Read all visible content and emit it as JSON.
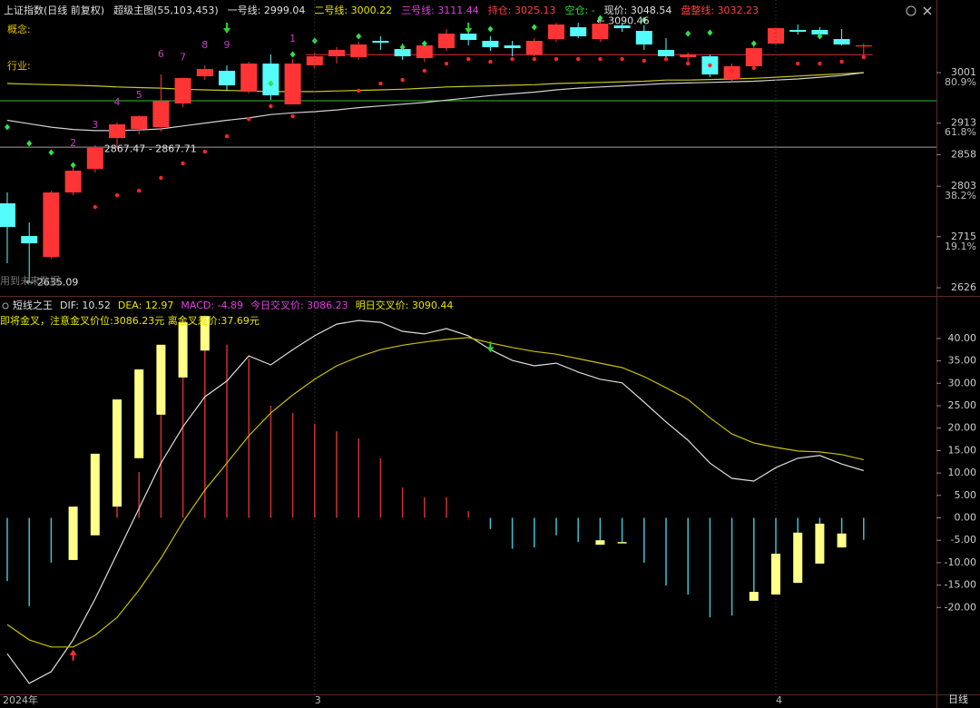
{
  "chart_data": [
    {
      "type": "candlestick",
      "header": [
        {
          "text": "上证指数(日线 前复权)",
          "color": "#e0e0e0"
        },
        {
          "text": "超级主图(55,103,453)",
          "color": "#e0e0e0"
        },
        {
          "text": "一号线: 2999.04",
          "color": "#e0e0e0"
        },
        {
          "text": "二号线: 3000.22",
          "color": "#e6e600"
        },
        {
          "text": "三号线: 3111.44",
          "color": "#e040e0"
        },
        {
          "text": "持仓: 3025.13",
          "color": "#ff4040"
        },
        {
          "text": "空仓: -",
          "color": "#30e030"
        },
        {
          "text": "现价: 3048.54",
          "color": "#e0e0e0"
        },
        {
          "text": "盘整线: 3032.23",
          "color": "#ff4040"
        }
      ],
      "side_labels": [
        "概念:",
        "行业:"
      ],
      "footnote": "用到未来数据",
      "up_color": "#ff3535",
      "down_color": "#54fcfc",
      "open": [
        2773.2,
        2716.2,
        2679.8,
        2792.1,
        2833.3,
        2887.1,
        2902.9,
        2906.1,
        2947.2,
        2994.7,
        3004.2,
        2967.8,
        3016.8,
        2945.6,
        3013.7,
        3029.5,
        3027.9,
        3056.4,
        3042.1,
        3026.3,
        3043.7,
        3069.0,
        3056.4,
        3048.5,
        3032.6,
        3059.5,
        3080.1,
        3059.5,
        3083.3,
        3073.8,
        3040.6,
        3027.9,
        3029.5,
        2989.9,
        3012.1,
        3051.6,
        3075.4,
        3075.4,
        3059.5,
        3047.0
      ],
      "close": [
        2732.0,
        2703.5,
        2792.1,
        2830.1,
        2869.7,
        2910.8,
        2925.0,
        2951.9,
        2991.5,
        3007.3,
        2978.8,
        3016.8,
        2961.4,
        3016.8,
        3029.5,
        3040.6,
        3050.1,
        3053.2,
        3029.5,
        3048.5,
        3069.0,
        3058.0,
        3045.3,
        3043.7,
        3056.4,
        3084.9,
        3064.3,
        3086.4,
        3078.5,
        3050.1,
        3029.5,
        3032.6,
        2997.8,
        3012.1,
        3043.7,
        3078.5,
        3072.2,
        3067.5,
        3050.1,
        3048.54
      ],
      "high": [
        2792.1,
        2739.9,
        2795.0,
        2842.8,
        2874.4,
        2914.0,
        2926.5,
        2997.8,
        2992.5,
        3013.7,
        3013.7,
        3020.0,
        3032.6,
        3024.7,
        3035.8,
        3045.3,
        3054.8,
        3064.3,
        3051.6,
        3054.8,
        3077.0,
        3080.1,
        3064.3,
        3056.4,
        3061.1,
        3088.0,
        3088.0,
        3090.46,
        3088.0,
        3083.3,
        3061.1,
        3035.8,
        3032.6,
        3016.8,
        3048.5,
        3080.1,
        3084.9,
        3080.1,
        3077.0,
        3052.0
      ],
      "low": [
        2668.7,
        2635.09,
        2676.0,
        2787.4,
        2827.0,
        2871.3,
        2893.4,
        2898.2,
        2940.9,
        2988.3,
        2969.4,
        2964.6,
        2953.5,
        2945.6,
        3008.9,
        3016.8,
        3023.2,
        3040.6,
        3023.2,
        3020.0,
        3039.0,
        3048.5,
        3039.0,
        3029.5,
        3029.5,
        3054.8,
        3061.1,
        3054.8,
        3072.2,
        3040.6,
        3024.7,
        3016.8,
        2993.1,
        2986.8,
        3008.9,
        3048.5,
        3067.5,
        3064.3,
        3048.5,
        3024.7
      ],
      "series": [
        {
          "color": "#c8c820",
          "values": [
            2982,
            2981,
            2980,
            2979,
            2978,
            2976,
            2975,
            2974,
            2972,
            2971,
            2970,
            2969,
            2968,
            2968,
            2968,
            2969,
            2970,
            2971,
            2972,
            2974,
            2976,
            2977,
            2978,
            2979,
            2980,
            2982,
            2983,
            2984,
            2985,
            2986,
            2988,
            2988,
            2989,
            2990,
            2991,
            2993,
            2995,
            2997,
            2999,
            3001
          ]
        },
        {
          "color": "#d0d0d0",
          "values": [
            2918,
            2912,
            2906,
            2902,
            2900,
            2900,
            2901,
            2903,
            2908,
            2913,
            2918,
            2922,
            2928,
            2931,
            2933,
            2936,
            2940,
            2943,
            2946,
            2949,
            2953,
            2957,
            2961,
            2964,
            2967,
            2971,
            2974,
            2976,
            2978,
            2980,
            2982,
            2983,
            2984,
            2985,
            2986,
            2988,
            2990,
            2993,
            2996,
            3001
          ]
        }
      ],
      "markers": [
        {
          "shape": "diamond",
          "color": "#30e050",
          "values": [
            2906.1,
            2877.6,
            2861.8,
            2839.6,
            null,
            null,
            null,
            null,
            null,
            null,
            null,
            null,
            2982.0,
            3032.6,
            3056.4,
            null,
            3064.3,
            null,
            3045.3,
            3051.6,
            null,
            null,
            3077.0,
            null,
            3080.1,
            null,
            null,
            3095.9,
            null,
            3092.8,
            null,
            3069.0,
            3070.6,
            null,
            3051.6,
            null,
            null,
            3064.3,
            null,
            null
          ]
        },
        {
          "shape": "dot",
          "color": "#ff2525",
          "values": [
            null,
            null,
            null,
            null,
            2766.8,
            2787.4,
            2795.3,
            2817.5,
            2842.8,
            2863.3,
            2890.2,
            2920.3,
            2942.5,
            2925.0,
            null,
            null,
            2969.4,
            2982.0,
            2988.3,
            3004.2,
            3016.8,
            3024.7,
            3020.0,
            3024.7,
            3024.7,
            3024.7,
            3024.7,
            3024.7,
            3024.7,
            3021.6,
            3024.7,
            3016.8,
            3013.7,
            3004.2,
            3008.9,
            null,
            3016.8,
            3016.8,
            3020.0,
            3027.9
          ]
        }
      ],
      "td_color": "#c040c0",
      "td_counts": [
        null,
        null,
        null,
        2,
        3,
        4,
        5,
        6,
        7,
        8,
        9,
        null,
        null,
        1,
        null,
        null,
        null,
        null,
        null,
        null,
        null,
        null,
        null,
        null,
        null,
        null,
        null,
        null,
        null,
        null,
        null,
        null,
        null,
        null,
        null,
        null,
        null,
        null,
        null,
        null
      ],
      "signal_arrows": {
        "color": "#30d030",
        "indices": [
          10,
          21
        ]
      },
      "levels": [
        {
          "value": 2952,
          "color": "#30c030"
        },
        {
          "value": 2871,
          "color": "#a0a0a0"
        },
        {
          "value": 3032.23,
          "color": "#e03030",
          "from": 14
        }
      ],
      "annotations": [
        {
          "text": "2867.47 - 2867.71",
          "index": 4,
          "value": 2867.6
        },
        {
          "text": "← 2635.09",
          "index": 1,
          "value": 2635.09
        },
        {
          "text": "← 3090.46",
          "index": 27,
          "value": 3090.46
        }
      ],
      "ylim": [
        2613.4,
        3127.6
      ],
      "yticks": [
        3001,
        2913,
        2858,
        2803,
        2715,
        2626
      ],
      "fib_levels": [
        {
          "value": 2983.6,
          "label": "80.9%"
        },
        {
          "value": 2896.6,
          "label": "61.8%"
        },
        {
          "value": 2785.8,
          "label": "38.2%"
        },
        {
          "value": 2697.2,
          "label": "19.1%"
        }
      ]
    },
    {
      "type": "macd",
      "header": [
        {
          "text": "短线之王",
          "color": "#e0e0e0"
        },
        {
          "text": "DIF: 10.52",
          "color": "#e0e0e0"
        },
        {
          "text": "DEA: 12.97",
          "color": "#e6e600"
        },
        {
          "text": "MACD: -4.89",
          "color": "#e040e0"
        },
        {
          "text": "今日交叉价: 3086.23",
          "color": "#e040e0"
        },
        {
          "text": "明日交叉价: 3090.44",
          "color": "#e6e600"
        }
      ],
      "note": "即将金叉，注意金叉价位:3086.23元  离金叉差价:37.69元",
      "note_color": "#e6e600",
      "categories": [
        "2024年",
        null,
        null,
        null,
        null,
        null,
        null,
        null,
        null,
        null,
        null,
        null,
        null,
        null,
        "3",
        null,
        null,
        null,
        null,
        null,
        null,
        null,
        null,
        null,
        null,
        null,
        null,
        null,
        null,
        null,
        null,
        null,
        null,
        null,
        null,
        "4",
        null,
        null,
        null,
        null
      ],
      "histogram": {
        "pos_color": "#d03030",
        "neg_color": "#40c0d0",
        "values": [
          -14.1,
          -19.7,
          -10.0,
          -9.0,
          -3.0,
          2.5,
          10.2,
          25.4,
          41.6,
          44.6,
          38.6,
          35.5,
          25.0,
          23.4,
          21.0,
          19.3,
          17.7,
          13.3,
          6.8,
          4.6,
          4.6,
          1.5,
          -2.5,
          -6.9,
          -6.6,
          -3.9,
          -5.4,
          -6.0,
          -5.4,
          -10.0,
          -15.1,
          -17.1,
          -22.2,
          -21.8,
          -18.5,
          -17.1,
          -14.5,
          -10.2,
          -6.6,
          -4.89
        ]
      },
      "boxes": {
        "color": "#ffff88",
        "values": [
          null,
          null,
          null,
          [
            -9.4,
            2.5
          ],
          [
            -3.9,
            14.3
          ],
          [
            2.5,
            26.4
          ],
          [
            13.3,
            33.1
          ],
          [
            23.0,
            38.6
          ],
          [
            31.3,
            43.6
          ],
          [
            37.3,
            45.0
          ],
          null,
          null,
          null,
          null,
          null,
          null,
          null,
          null,
          null,
          null,
          null,
          null,
          null,
          null,
          null,
          null,
          null,
          [
            -6.0,
            -5.0
          ],
          [
            -5.6,
            -5.4
          ],
          null,
          null,
          null,
          null,
          null,
          [
            -18.5,
            -16.5
          ],
          [
            -17.1,
            -8.0
          ],
          [
            -14.5,
            -3.3
          ],
          [
            -10.2,
            -1.3
          ],
          [
            -6.6,
            -3.5
          ],
          null
        ]
      },
      "series": [
        {
          "color": "#dcdcdc",
          "values": [
            -30.3,
            -36.9,
            -34.3,
            -27.2,
            -18.1,
            -8.0,
            2.1,
            12.2,
            20.3,
            27.0,
            30.5,
            36.1,
            34.1,
            37.5,
            40.6,
            43.2,
            44.0,
            43.6,
            41.6,
            41.0,
            42.2,
            40.6,
            37.5,
            35.1,
            33.9,
            34.5,
            32.5,
            30.9,
            30.1,
            25.8,
            21.4,
            17.3,
            12.2,
            8.8,
            8.2,
            11.2,
            13.3,
            13.9,
            12.0,
            10.52
          ]
        },
        {
          "color": "#c8c000",
          "values": [
            -23.8,
            -27.2,
            -28.8,
            -28.8,
            -26.2,
            -22.2,
            -16.1,
            -9.0,
            -0.9,
            6.2,
            12.2,
            18.3,
            23.4,
            27.4,
            30.9,
            33.9,
            35.9,
            37.5,
            38.5,
            39.2,
            39.8,
            40.2,
            39.0,
            38.0,
            37.1,
            36.5,
            35.5,
            34.5,
            33.5,
            31.5,
            29.0,
            26.4,
            22.3,
            18.7,
            16.7,
            15.7,
            14.9,
            14.7,
            14.1,
            12.97
          ]
        }
      ],
      "arrows": [
        {
          "index": 3,
          "direction": "up",
          "color": "#ff3030"
        },
        {
          "index": 22,
          "direction": "down",
          "color": "#30d030"
        }
      ],
      "ylim": [
        -39.37,
        48.68
      ],
      "yticks": [
        {
          "value": 40,
          "label": "40.00"
        },
        {
          "value": 35,
          "label": "35.00"
        },
        {
          "value": 30,
          "label": "30.00"
        },
        {
          "value": 25,
          "label": "25.00"
        },
        {
          "value": 20,
          "label": "20.00"
        },
        {
          "value": 15,
          "label": "15.00"
        },
        {
          "value": 10,
          "label": "10.00"
        },
        {
          "value": 5,
          "label": "5.00"
        },
        {
          "value": 0,
          "label": "0.00"
        },
        {
          "value": -5,
          "label": "-5.00"
        },
        {
          "value": -10,
          "label": "-10.00"
        },
        {
          "value": -15,
          "label": "-15.00"
        },
        {
          "value": -20,
          "label": "-20.00"
        }
      ]
    }
  ],
  "footer": {
    "label": "日线"
  }
}
